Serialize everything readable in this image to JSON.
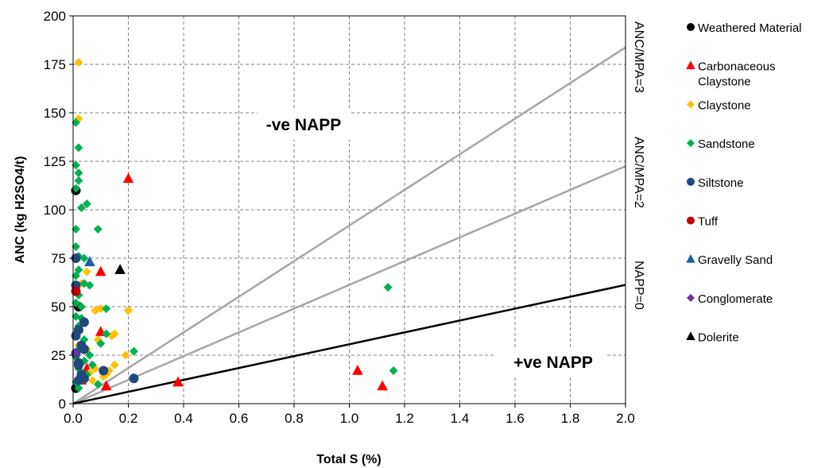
{
  "chart_data": {
    "type": "scatter",
    "xlabel": "Total S (%)",
    "ylabel": "ANC (kg H2SO4/t)",
    "xlim": [
      0,
      2.0
    ],
    "ylim": [
      0,
      200
    ],
    "xticks": [
      "0.0",
      "0.2",
      "0.4",
      "0.6",
      "0.8",
      "1.0",
      "1.2",
      "1.4",
      "1.6",
      "1.8",
      "2.0"
    ],
    "yticks": [
      "0",
      "25",
      "50",
      "75",
      "100",
      "125",
      "150",
      "175",
      "200"
    ],
    "grid": true,
    "legend_position": "right",
    "annotations": [
      {
        "text": "-ve NAPP",
        "x": 0.61,
        "y": 143
      },
      {
        "text": "+ve NAPP",
        "x": 1.74,
        "y": 20
      }
    ],
    "reference_lines": [
      {
        "label": "ANC/MPA=3",
        "slope": 91.875,
        "color": "#a6a6a6"
      },
      {
        "label": "ANC/MPA=2",
        "slope": 61.25,
        "color": "#a6a6a6"
      },
      {
        "label": "NAPP=0",
        "slope": 30.625,
        "color": "#000000"
      }
    ],
    "series": [
      {
        "name": "Weathered Material",
        "marker": "circle",
        "color": "#000000",
        "points": [
          [
            0.01,
            110
          ],
          [
            0.02,
            50
          ],
          [
            0.01,
            8
          ]
        ]
      },
      {
        "name": "Carbonaceous Claystone",
        "marker": "triangle",
        "color": "#ff0000",
        "points": [
          [
            0.2,
            116
          ],
          [
            0.1,
            68
          ],
          [
            0.1,
            37
          ],
          [
            0.12,
            9
          ],
          [
            0.38,
            11
          ],
          [
            1.03,
            17
          ],
          [
            1.12,
            9
          ],
          [
            0.05,
            18
          ],
          [
            0.03,
            12
          ]
        ]
      },
      {
        "name": "Claystone",
        "marker": "diamond",
        "color": "#ffc000",
        "points": [
          [
            0.02,
            176
          ],
          [
            0.02,
            147
          ],
          [
            0.03,
            62
          ],
          [
            0.05,
            68
          ],
          [
            0.08,
            48
          ],
          [
            0.1,
            49
          ],
          [
            0.09,
            33
          ],
          [
            0.14,
            35
          ],
          [
            0.15,
            36
          ],
          [
            0.2,
            48
          ],
          [
            0.19,
            25
          ],
          [
            0.15,
            20
          ],
          [
            0.13,
            17
          ],
          [
            0.11,
            14
          ],
          [
            0.08,
            18
          ],
          [
            0.06,
            16
          ],
          [
            0.04,
            22
          ],
          [
            0.03,
            41
          ],
          [
            0.02,
            30
          ],
          [
            0.07,
            12
          ],
          [
            0.05,
            28
          ],
          [
            0.12,
            15
          ]
        ]
      },
      {
        "name": "Sandstone",
        "marker": "diamond",
        "color": "#00b050",
        "points": [
          [
            0.01,
            145
          ],
          [
            0.02,
            132
          ],
          [
            0.01,
            123
          ],
          [
            0.02,
            119
          ],
          [
            0.02,
            115
          ],
          [
            0.01,
            111
          ],
          [
            0.05,
            103
          ],
          [
            0.03,
            101
          ],
          [
            0.01,
            90
          ],
          [
            0.09,
            90
          ],
          [
            0.01,
            81
          ],
          [
            0.02,
            76
          ],
          [
            0.04,
            75
          ],
          [
            0.02,
            69
          ],
          [
            0.01,
            66
          ],
          [
            0.04,
            62
          ],
          [
            0.06,
            61
          ],
          [
            0.02,
            56
          ],
          [
            0.01,
            52
          ],
          [
            0.03,
            50
          ],
          [
            0.12,
            49
          ],
          [
            0.01,
            45
          ],
          [
            0.03,
            44
          ],
          [
            0.02,
            40
          ],
          [
            0.01,
            35
          ],
          [
            0.04,
            33
          ],
          [
            0.03,
            30
          ],
          [
            0.1,
            31
          ],
          [
            0.02,
            28
          ],
          [
            0.01,
            24
          ],
          [
            0.04,
            22
          ],
          [
            0.02,
            18
          ],
          [
            0.05,
            15
          ],
          [
            0.03,
            12
          ],
          [
            0.06,
            25
          ],
          [
            0.07,
            20
          ],
          [
            0.12,
            36
          ],
          [
            0.22,
            27
          ],
          [
            0.09,
            10
          ],
          [
            1.14,
            60
          ],
          [
            1.16,
            17
          ],
          [
            0.01,
            11
          ],
          [
            0.02,
            8
          ]
        ]
      },
      {
        "name": "Siltstone",
        "marker": "circle",
        "color": "#1f497d",
        "points": [
          [
            0.01,
            75
          ],
          [
            0.01,
            61
          ],
          [
            0.04,
            42
          ],
          [
            0.02,
            38
          ],
          [
            0.01,
            35
          ],
          [
            0.03,
            30
          ],
          [
            0.04,
            28
          ],
          [
            0.02,
            21
          ],
          [
            0.02,
            20
          ],
          [
            0.03,
            15
          ],
          [
            0.04,
            13
          ],
          [
            0.02,
            12
          ],
          [
            0.11,
            17
          ],
          [
            0.22,
            13
          ],
          [
            0.01,
            26
          ]
        ]
      },
      {
        "name": "Tuff",
        "marker": "circle",
        "color": "#c00000",
        "points": [
          [
            0.01,
            58
          ]
        ]
      },
      {
        "name": "Gravelly Sand",
        "marker": "triangle",
        "color": "#1f5fa8",
        "points": [
          [
            0.06,
            73
          ]
        ]
      },
      {
        "name": "Conglomerate",
        "marker": "diamond",
        "color": "#7030a0",
        "points": [
          [
            0.01,
            26
          ]
        ]
      },
      {
        "name": "Dolerite",
        "marker": "triangle",
        "color": "#000000",
        "points": [
          [
            0.17,
            69
          ]
        ]
      }
    ]
  }
}
